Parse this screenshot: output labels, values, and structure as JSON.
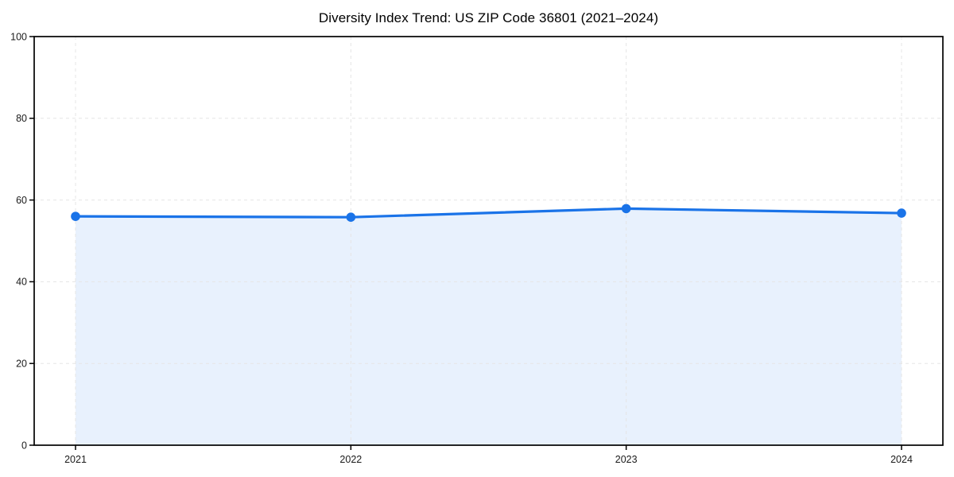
{
  "chart_data": {
    "type": "area",
    "title": "Diversity Index Trend: US ZIP Code 36801 (2021–2024)",
    "categories": [
      "2021",
      "2022",
      "2023",
      "2024"
    ],
    "series": [
      {
        "name": "Diversity Index",
        "values": [
          56.0,
          55.8,
          57.9,
          56.8
        ]
      }
    ],
    "xlabel": "",
    "ylabel": "",
    "ylim": [
      0,
      100
    ],
    "yticks": [
      0,
      20,
      40,
      60,
      80,
      100
    ],
    "grid": true,
    "grid_style": "dashed",
    "legend_position": "none",
    "marker": "circle",
    "colors": {
      "line": "#1a73e8",
      "marker": "#1a73e8",
      "fill_area": "rgba(26,115,232,0.10)",
      "gridline": "#e5e5e5",
      "axis": "#000000",
      "tick_text": "#1a1a1a",
      "title_text": "#000000",
      "background": "#ffffff"
    }
  }
}
